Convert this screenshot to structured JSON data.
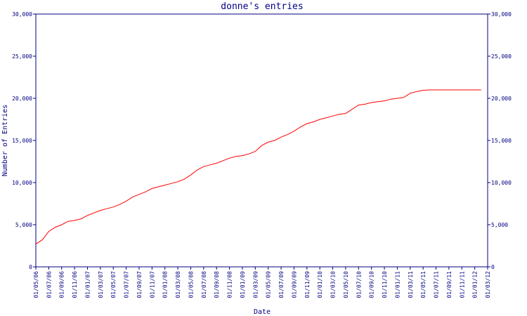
{
  "chart_data": {
    "type": "line",
    "title": "donne's entries",
    "xlabel": "Date",
    "ylabel": "Number of Entries",
    "ylim": [
      0,
      30000
    ],
    "yticks": [
      "0",
      "5,000",
      "10,000",
      "15,000",
      "20,000",
      "25,000",
      "30,000"
    ],
    "ytick_values": [
      0,
      5000,
      10000,
      15000,
      20000,
      25000,
      30000
    ],
    "x_tick_labels": [
      "01/05/06",
      "01/07/06",
      "01/09/06",
      "01/11/06",
      "01/01/07",
      "01/03/07",
      "01/05/07",
      "01/07/07",
      "01/09/07",
      "01/11/07",
      "01/01/08",
      "01/03/08",
      "01/05/08",
      "01/07/08",
      "01/09/08",
      "01/11/08",
      "01/01/09",
      "01/03/09",
      "01/05/09",
      "01/07/09",
      "01/09/09",
      "01/11/09",
      "01/01/10",
      "01/03/10",
      "01/05/10",
      "01/07/10",
      "01/09/10",
      "01/11/10",
      "01/01/11",
      "01/03/11",
      "01/05/11",
      "01/07/11",
      "01/09/11",
      "01/11/11",
      "01/01/12",
      "01/03/12"
    ],
    "grid": false,
    "colors": {
      "axis": "#000080",
      "series": "#ff0000"
    },
    "series": [
      {
        "x": [
          "01/05/06",
          "01/06/06",
          "01/07/06",
          "01/08/06",
          "01/09/06",
          "01/10/06",
          "01/11/06",
          "01/12/06",
          "01/01/07",
          "01/02/07",
          "01/03/07",
          "01/04/07",
          "01/05/07",
          "01/06/07",
          "01/07/07",
          "01/08/07",
          "01/09/07",
          "01/10/07",
          "01/11/07",
          "01/12/07",
          "01/01/08",
          "01/02/08",
          "01/03/08",
          "01/04/08",
          "01/05/08",
          "01/06/08",
          "01/07/08",
          "01/08/08",
          "01/09/08",
          "01/10/08",
          "01/11/08",
          "01/12/08",
          "01/01/09",
          "01/02/09",
          "01/03/09",
          "01/04/09",
          "01/05/09",
          "01/06/09",
          "01/07/09",
          "01/08/09",
          "01/09/09",
          "01/10/09",
          "01/11/09",
          "01/12/09",
          "01/01/10",
          "01/02/10",
          "01/03/10",
          "01/04/10",
          "01/05/10",
          "01/06/10",
          "01/07/10",
          "01/08/10",
          "01/09/10",
          "01/10/10",
          "01/11/10",
          "01/12/10",
          "01/01/11",
          "01/02/11",
          "01/03/11",
          "01/04/11",
          "01/05/11",
          "01/06/11",
          "01/07/11",
          "01/08/11",
          "01/09/11",
          "01/10/11",
          "01/11/11",
          "01/12/11",
          "01/01/12",
          "01/02/12"
        ],
        "values": [
          2700,
          3200,
          4200,
          4700,
          5000,
          5400,
          5500,
          5700,
          6100,
          6400,
          6700,
          6900,
          7100,
          7400,
          7800,
          8300,
          8600,
          8900,
          9300,
          9500,
          9700,
          9900,
          10100,
          10400,
          10900,
          11500,
          11900,
          12100,
          12300,
          12600,
          12900,
          13100,
          13200,
          13400,
          13700,
          14400,
          14800,
          15000,
          15400,
          15700,
          16100,
          16600,
          17000,
          17200,
          17500,
          17700,
          17900,
          18100,
          18200,
          18700,
          19200,
          19300,
          19500,
          19600,
          19700,
          19900,
          20000,
          20100,
          20600,
          20800,
          20950,
          21000,
          21000,
          21000,
          21000,
          21000,
          21000,
          21000,
          21000,
          21000
        ]
      }
    ]
  }
}
